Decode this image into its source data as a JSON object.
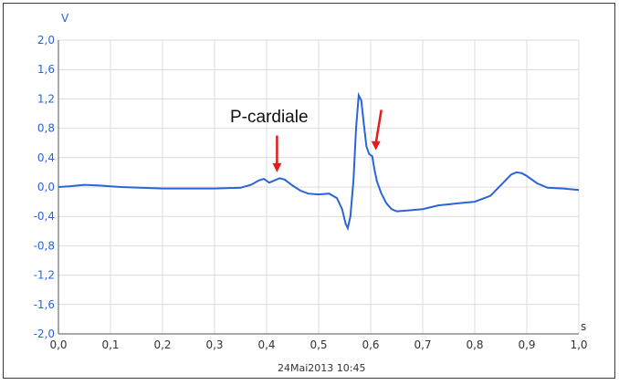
{
  "chart_data": {
    "type": "line",
    "ylabel": "V",
    "xlabel": "s",
    "xlim": [
      0.0,
      1.0
    ],
    "ylim": [
      -2.0,
      2.0
    ],
    "x_ticks": [
      "0,0",
      "0,1",
      "0,2",
      "0,3",
      "0,4",
      "0,5",
      "0,6",
      "0,7",
      "0,8",
      "0,9",
      "1,0"
    ],
    "y_ticks": [
      "2,0",
      "1,6",
      "1,2",
      "0,8",
      "0,4",
      "0,0",
      "-0,4",
      "-0,8",
      "-1,2",
      "-1,6",
      "-2,0"
    ],
    "grid": true,
    "series": [
      {
        "color": "#2b64d6",
        "points": [
          [
            0.0,
            0.0
          ],
          [
            0.02,
            0.01
          ],
          [
            0.05,
            0.03
          ],
          [
            0.08,
            0.02
          ],
          [
            0.12,
            0.0
          ],
          [
            0.2,
            -0.02
          ],
          [
            0.3,
            -0.02
          ],
          [
            0.35,
            -0.01
          ],
          [
            0.37,
            0.03
          ],
          [
            0.385,
            0.09
          ],
          [
            0.395,
            0.11
          ],
          [
            0.405,
            0.06
          ],
          [
            0.415,
            0.09
          ],
          [
            0.425,
            0.12
          ],
          [
            0.435,
            0.1
          ],
          [
            0.45,
            0.02
          ],
          [
            0.465,
            -0.05
          ],
          [
            0.48,
            -0.09
          ],
          [
            0.5,
            -0.1
          ],
          [
            0.52,
            -0.09
          ],
          [
            0.535,
            -0.15
          ],
          [
            0.545,
            -0.3
          ],
          [
            0.552,
            -0.5
          ],
          [
            0.556,
            -0.56
          ],
          [
            0.561,
            -0.4
          ],
          [
            0.567,
            0.1
          ],
          [
            0.572,
            0.8
          ],
          [
            0.577,
            1.25
          ],
          [
            0.582,
            1.18
          ],
          [
            0.587,
            0.85
          ],
          [
            0.592,
            0.55
          ],
          [
            0.597,
            0.45
          ],
          [
            0.603,
            0.42
          ],
          [
            0.607,
            0.25
          ],
          [
            0.612,
            0.08
          ],
          [
            0.62,
            -0.08
          ],
          [
            0.63,
            -0.22
          ],
          [
            0.64,
            -0.3
          ],
          [
            0.65,
            -0.33
          ],
          [
            0.67,
            -0.32
          ],
          [
            0.7,
            -0.3
          ],
          [
            0.73,
            -0.25
          ],
          [
            0.77,
            -0.22
          ],
          [
            0.8,
            -0.2
          ],
          [
            0.83,
            -0.12
          ],
          [
            0.855,
            0.06
          ],
          [
            0.87,
            0.17
          ],
          [
            0.88,
            0.2
          ],
          [
            0.89,
            0.19
          ],
          [
            0.9,
            0.15
          ],
          [
            0.92,
            0.05
          ],
          [
            0.94,
            -0.01
          ],
          [
            0.97,
            -0.02
          ],
          [
            1.0,
            -0.04
          ]
        ]
      }
    ],
    "annotations": [
      {
        "text": "P-cardiale"
      }
    ],
    "arrows": [
      {
        "x": 0.42,
        "y_from": 0.7,
        "y_to": 0.2,
        "color": "#e11d1d"
      },
      {
        "x": 0.61,
        "y_from": 1.05,
        "y_to": 0.5,
        "color": "#e11d1d"
      }
    ],
    "timestamp": "24Mai2013 10:45"
  }
}
